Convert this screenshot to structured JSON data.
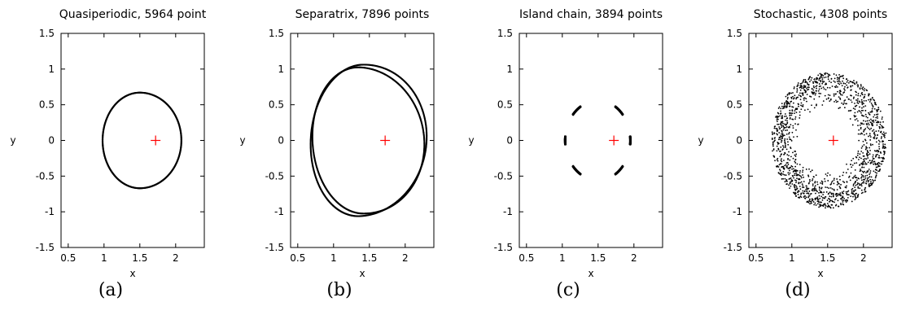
{
  "chart_data": [
    {
      "type": "scatter",
      "title": "Quasiperiodic, 5964 point",
      "xlabel": "x",
      "ylabel": "y",
      "xlim": [
        0.4,
        2.4
      ],
      "ylim": [
        -1.5,
        1.5
      ],
      "xticks": [
        "0.5",
        "1",
        "1.5",
        "2"
      ],
      "yticks": [
        "-1.5",
        "-1",
        "-0.5",
        "0",
        "0.5",
        "1",
        "1.5"
      ],
      "marker": {
        "x": 1.72,
        "y": 0
      },
      "orbit": {
        "kind": "ring",
        "cx": 1.5,
        "cy": 0,
        "right": 2.08,
        "left": 0.98,
        "top": 0.67,
        "bottom": -0.67,
        "bands": 1
      },
      "caption": "(a)",
      "colors": {
        "points": "#000000",
        "marker": "#ff0000"
      }
    },
    {
      "type": "scatter",
      "title": "Separatrix, 7896 points",
      "xlabel": "x",
      "ylabel": "y",
      "xlim": [
        0.4,
        2.4
      ],
      "ylim": [
        -1.5,
        1.5
      ],
      "xticks": [
        "0.5",
        "1",
        "1.5",
        "2"
      ],
      "yticks": [
        "-1.5",
        "-1",
        "-0.5",
        "0",
        "0.5",
        "1",
        "1.5"
      ],
      "marker": {
        "x": 1.72,
        "y": 0
      },
      "orbit": {
        "kind": "ring",
        "cx": 1.38,
        "cy": 0,
        "right": 2.3,
        "left": 0.68,
        "top": 1.06,
        "bottom": -1.06,
        "bands": 2
      },
      "caption": "(b)",
      "colors": {
        "points": "#000000",
        "marker": "#ff0000"
      }
    },
    {
      "type": "scatter",
      "title": "Island chain, 3894 points",
      "xlabel": "x",
      "ylabel": "y",
      "xlim": [
        0.4,
        2.4
      ],
      "ylim": [
        -1.5,
        1.5
      ],
      "xticks": [
        "0.5",
        "1",
        "1.5",
        "2"
      ],
      "yticks": [
        "-1.5",
        "-1",
        "-0.5",
        "0",
        "0.5",
        "1",
        "1.5"
      ],
      "marker": {
        "x": 1.72,
        "y": 0
      },
      "orbit": {
        "kind": "islands",
        "cx": 1.5,
        "cy": 0,
        "right": 1.95,
        "left": 1.04,
        "top": 0.56,
        "bottom": -0.56,
        "bands": 1
      },
      "caption": "(c)",
      "colors": {
        "points": "#000000",
        "marker": "#ff0000"
      }
    },
    {
      "type": "scatter",
      "title": "Stochastic, 4308 points",
      "xlabel": "x",
      "ylabel": "y",
      "xlim": [
        0.4,
        2.4
      ],
      "ylim": [
        -1.5,
        1.5
      ],
      "xticks": [
        "0.5",
        "1",
        "1.5",
        "2"
      ],
      "yticks": [
        "-1.5",
        "-1",
        "-0.5",
        "0",
        "0.5",
        "1",
        "1.5"
      ],
      "marker": {
        "x": 1.58,
        "y": 0
      },
      "orbit": {
        "kind": "stochastic",
        "cx": 1.5,
        "cy": 0,
        "right": 2.32,
        "left": 0.72,
        "top": 0.95,
        "bottom": -0.95,
        "inner_right": 1.88,
        "inner_left": 1.08,
        "inner_top": 0.45,
        "inner_bottom": -0.45,
        "n": 1500
      },
      "caption": "(d)",
      "colors": {
        "points": "#000000",
        "marker": "#ff0000"
      }
    }
  ]
}
